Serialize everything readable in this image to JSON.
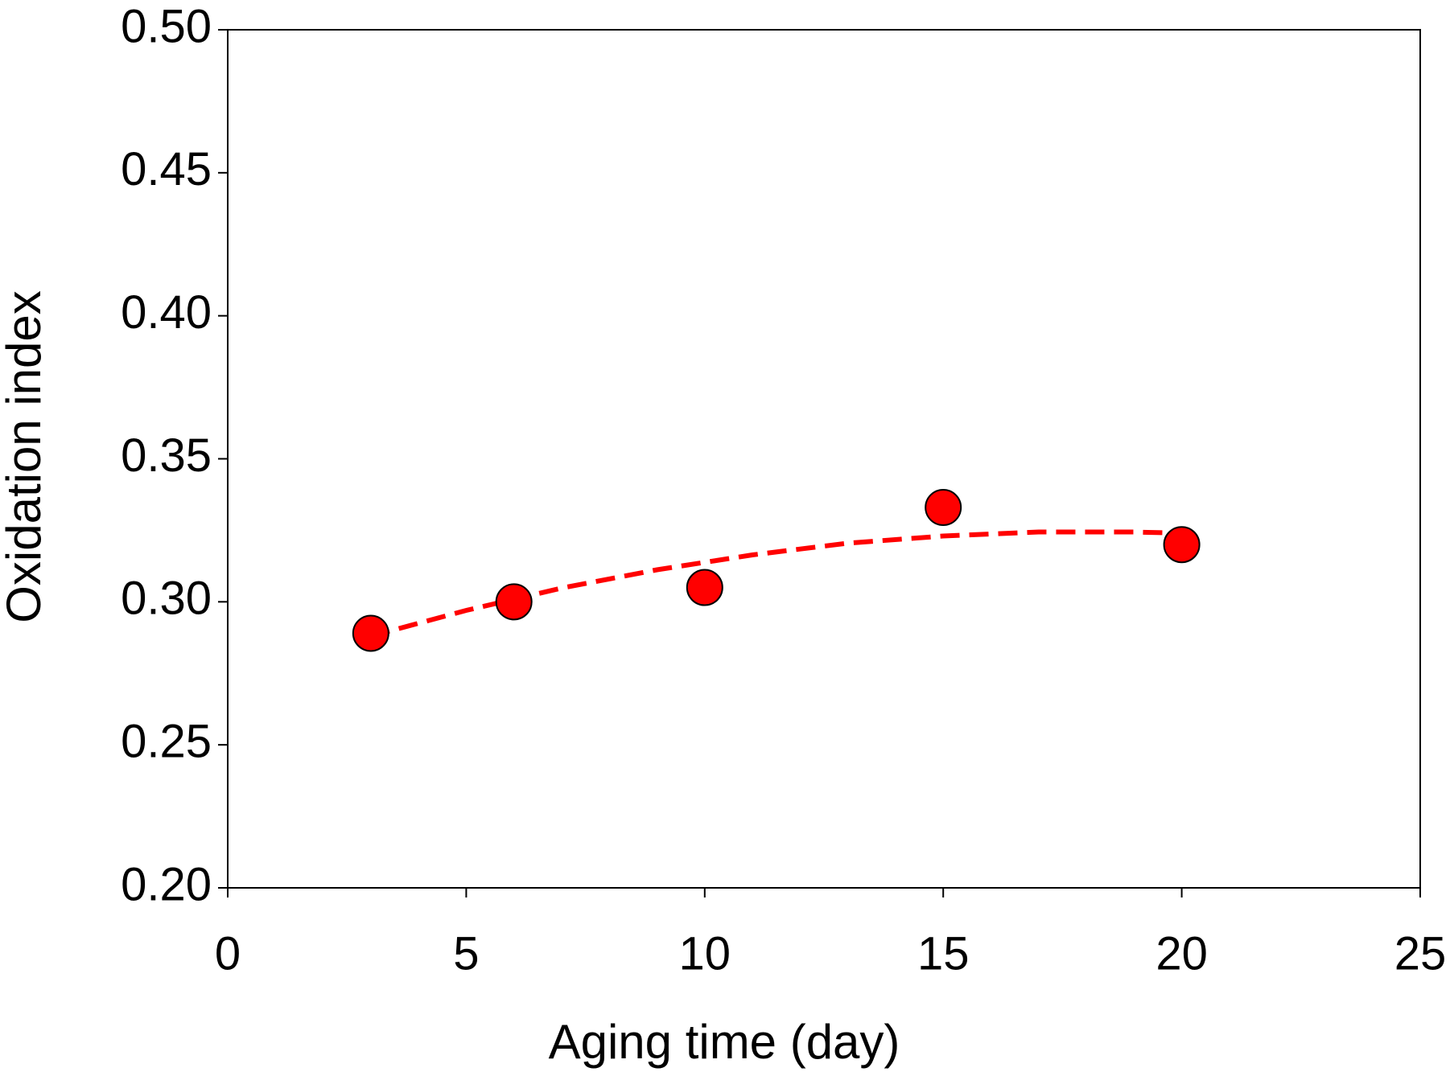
{
  "chart_data": {
    "type": "scatter",
    "x_label": "Aging time (day)",
    "y_label": "Oxidation index",
    "xlim": [
      0,
      25
    ],
    "xticks": [
      0,
      5,
      10,
      15,
      20,
      25
    ],
    "ylim": [
      0.2,
      0.5
    ],
    "yticks": [
      {
        "value": 0.2,
        "label": "0.20"
      },
      {
        "value": 0.25,
        "label": "0.25"
      },
      {
        "value": 0.3,
        "label": "0.30"
      },
      {
        "value": 0.35,
        "label": "0.35"
      },
      {
        "value": 0.4,
        "label": "0.40"
      },
      {
        "value": 0.45,
        "label": "0.45"
      },
      {
        "value": 0.5,
        "label": "0.50"
      }
    ],
    "points": {
      "color": "#ff0000",
      "x": [
        3,
        6,
        10,
        15,
        20
      ],
      "values": [
        0.289,
        0.3,
        0.305,
        0.333,
        0.32
      ]
    },
    "fit": {
      "color": "#ff0000",
      "dashed": true,
      "x": [
        3,
        5,
        7,
        9,
        11,
        13,
        15,
        17,
        19,
        20
      ],
      "values": [
        0.288,
        0.297,
        0.3048,
        0.3112,
        0.3164,
        0.3205,
        0.323,
        0.3244,
        0.3244,
        0.324
      ]
    }
  }
}
